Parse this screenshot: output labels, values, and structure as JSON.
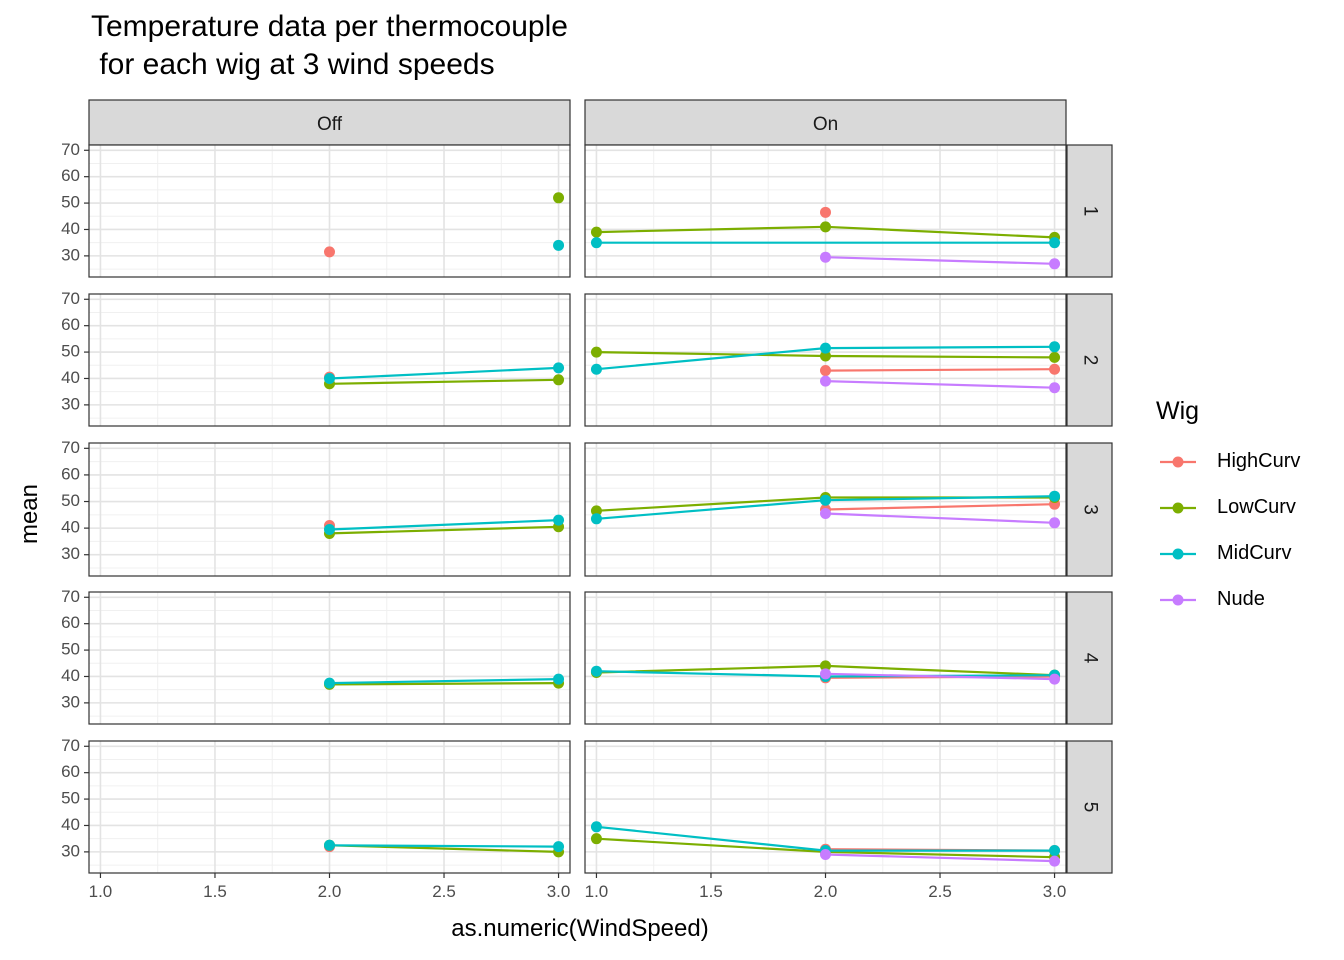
{
  "chart_data": {
    "type": "line",
    "title_lines": [
      "Temperature data per thermocouple",
      " for each wig at 3 wind speeds"
    ],
    "xlabel": "as.numeric(WindSpeed)",
    "ylabel": "mean",
    "xlim": [
      0.95,
      3.05
    ],
    "ylim": [
      22,
      72
    ],
    "x_ticks": [
      "1.0",
      "1.5",
      "2.0",
      "2.5",
      "3.0"
    ],
    "y_ticks": [
      "30",
      "40",
      "50",
      "60",
      "70"
    ],
    "col_facets": [
      "Off",
      "On"
    ],
    "row_facets": [
      "1",
      "2",
      "3",
      "4",
      "5"
    ],
    "legend": {
      "title": "Wig",
      "placement": "right",
      "entries": [
        {
          "name": "HighCurv",
          "color": "#F8766D"
        },
        {
          "name": "LowCurv",
          "color": "#7CAE00"
        },
        {
          "name": "MidCurv",
          "color": "#00BFC4"
        },
        {
          "name": "Nude",
          "color": "#C77CFF"
        }
      ]
    },
    "panels": [
      {
        "col": "Off",
        "row": "1",
        "series": [
          {
            "name": "HighCurv",
            "x": [
              2
            ],
            "y": [
              31.5
            ]
          },
          {
            "name": "LowCurv",
            "x": [
              3
            ],
            "y": [
              52
            ]
          },
          {
            "name": "MidCurv",
            "x": [
              3
            ],
            "y": [
              34
            ]
          }
        ]
      },
      {
        "col": "On",
        "row": "1",
        "series": [
          {
            "name": "HighCurv",
            "x": [
              2
            ],
            "y": [
              46.5
            ]
          },
          {
            "name": "LowCurv",
            "x": [
              1,
              2,
              3
            ],
            "y": [
              39,
              41,
              37
            ]
          },
          {
            "name": "MidCurv",
            "x": [
              1,
              3
            ],
            "y": [
              35,
              35
            ]
          },
          {
            "name": "Nude",
            "x": [
              2,
              3
            ],
            "y": [
              29.5,
              27
            ]
          }
        ]
      },
      {
        "col": "Off",
        "row": "2",
        "series": [
          {
            "name": "HighCurv",
            "x": [
              2
            ],
            "y": [
              40.5
            ]
          },
          {
            "name": "LowCurv",
            "x": [
              2,
              3
            ],
            "y": [
              38,
              39.5
            ]
          },
          {
            "name": "MidCurv",
            "x": [
              2,
              3
            ],
            "y": [
              40,
              44
            ]
          }
        ]
      },
      {
        "col": "On",
        "row": "2",
        "series": [
          {
            "name": "HighCurv",
            "x": [
              2,
              3
            ],
            "y": [
              43,
              43.5
            ]
          },
          {
            "name": "LowCurv",
            "x": [
              1,
              2,
              3
            ],
            "y": [
              50,
              48.5,
              48
            ]
          },
          {
            "name": "MidCurv",
            "x": [
              1,
              2,
              3
            ],
            "y": [
              43.5,
              51.5,
              52
            ]
          },
          {
            "name": "Nude",
            "x": [
              2,
              3
            ],
            "y": [
              39,
              36.5
            ]
          }
        ]
      },
      {
        "col": "Off",
        "row": "3",
        "series": [
          {
            "name": "HighCurv",
            "x": [
              2
            ],
            "y": [
              41
            ]
          },
          {
            "name": "LowCurv",
            "x": [
              2,
              3
            ],
            "y": [
              38,
              40.5
            ]
          },
          {
            "name": "MidCurv",
            "x": [
              2,
              3
            ],
            "y": [
              39.5,
              43
            ]
          }
        ]
      },
      {
        "col": "On",
        "row": "3",
        "series": [
          {
            "name": "HighCurv",
            "x": [
              2,
              3
            ],
            "y": [
              47,
              49
            ]
          },
          {
            "name": "LowCurv",
            "x": [
              1,
              2,
              3
            ],
            "y": [
              46.5,
              51.5,
              51.5
            ]
          },
          {
            "name": "MidCurv",
            "x": [
              1,
              2,
              3
            ],
            "y": [
              43.5,
              50.5,
              52
            ]
          },
          {
            "name": "Nude",
            "x": [
              2,
              3
            ],
            "y": [
              45.5,
              42
            ]
          }
        ]
      },
      {
        "col": "Off",
        "row": "4",
        "series": [
          {
            "name": "LowCurv",
            "x": [
              2,
              3
            ],
            "y": [
              37,
              37.5
            ]
          },
          {
            "name": "MidCurv",
            "x": [
              2,
              3
            ],
            "y": [
              37.5,
              39
            ]
          }
        ]
      },
      {
        "col": "On",
        "row": "4",
        "series": [
          {
            "name": "HighCurv",
            "x": [
              2,
              3
            ],
            "y": [
              39.5,
              40
            ]
          },
          {
            "name": "LowCurv",
            "x": [
              1,
              2,
              3
            ],
            "y": [
              41.5,
              44,
              40.5
            ]
          },
          {
            "name": "MidCurv",
            "x": [
              1,
              2,
              3
            ],
            "y": [
              42,
              40,
              40.5
            ]
          },
          {
            "name": "Nude",
            "x": [
              2,
              3
            ],
            "y": [
              41,
              39
            ]
          }
        ]
      },
      {
        "col": "Off",
        "row": "5",
        "series": [
          {
            "name": "HighCurv",
            "x": [
              2
            ],
            "y": [
              32
            ]
          },
          {
            "name": "LowCurv",
            "x": [
              2,
              3
            ],
            "y": [
              32.5,
              30
            ]
          },
          {
            "name": "MidCurv",
            "x": [
              2,
              3
            ],
            "y": [
              32.5,
              32
            ]
          }
        ]
      },
      {
        "col": "On",
        "row": "5",
        "series": [
          {
            "name": "HighCurv",
            "x": [
              2,
              3
            ],
            "y": [
              31,
              30.5
            ]
          },
          {
            "name": "LowCurv",
            "x": [
              1,
              2,
              3
            ],
            "y": [
              35,
              30,
              28
            ]
          },
          {
            "name": "MidCurv",
            "x": [
              1,
              2,
              3
            ],
            "y": [
              39.5,
              30.5,
              30.5
            ]
          },
          {
            "name": "Nude",
            "x": [
              2,
              3
            ],
            "y": [
              29,
              26.5
            ]
          }
        ]
      }
    ]
  }
}
